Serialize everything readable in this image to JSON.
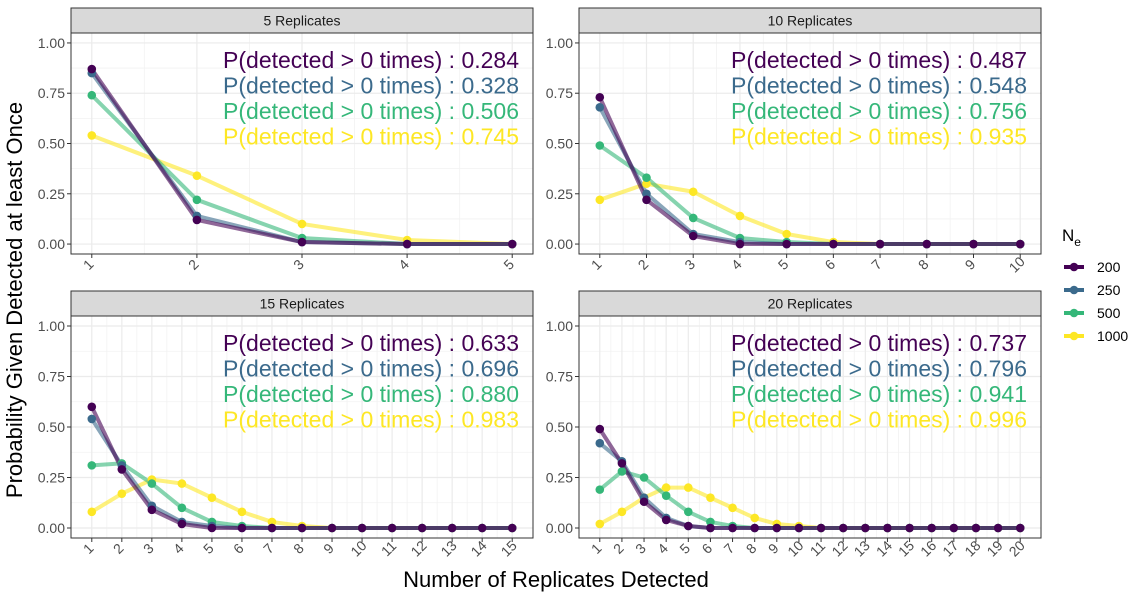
{
  "figure": {
    "ylabel": "Probability Given Detected at least Once",
    "xlabel": "Number of Replicates Detected",
    "legend_title_main": "N",
    "legend_title_sub": "e"
  },
  "colors": {
    "200": "#440154",
    "250": "#3B6A8C",
    "500": "#35B779",
    "1000": "#FDE725",
    "panel_strip": "#D9D9D9",
    "grid": "#EBEBEB"
  },
  "legend": [
    {
      "name": "200",
      "color": "#440154"
    },
    {
      "name": "250",
      "color": "#3B6A8C"
    },
    {
      "name": "500",
      "color": "#35B779"
    },
    {
      "name": "1000",
      "color": "#FDE725"
    }
  ],
  "chart_data": [
    {
      "type": "line",
      "title": "5  Replicates",
      "x": [
        1,
        2,
        3,
        4,
        5
      ],
      "ylim": [
        0,
        1
      ],
      "yticks": [
        "0.00",
        "0.25",
        "0.50",
        "0.75",
        "1.00"
      ],
      "grid": true,
      "series": [
        {
          "name": "200",
          "values": [
            0.87,
            0.12,
            0.01,
            0.0,
            0.0
          ]
        },
        {
          "name": "250",
          "values": [
            0.85,
            0.14,
            0.01,
            0.0,
            0.0
          ]
        },
        {
          "name": "500",
          "values": [
            0.74,
            0.22,
            0.03,
            0.0,
            0.0
          ]
        },
        {
          "name": "1000",
          "values": [
            0.54,
            0.34,
            0.1,
            0.02,
            0.0
          ]
        }
      ],
      "annotations": [
        {
          "series": "200",
          "text": "P(detected > 0 times) :  0.284"
        },
        {
          "series": "250",
          "text": "P(detected > 0 times) :  0.328"
        },
        {
          "series": "500",
          "text": "P(detected > 0 times) :  0.506"
        },
        {
          "series": "1000",
          "text": "P(detected > 0 times) :  0.745"
        }
      ]
    },
    {
      "type": "line",
      "title": "10  Replicates",
      "x": [
        1,
        2,
        3,
        4,
        5,
        6,
        7,
        8,
        9,
        10
      ],
      "ylim": [
        0,
        1
      ],
      "yticks": [
        "0.00",
        "0.25",
        "0.50",
        "0.75",
        "1.00"
      ],
      "grid": true,
      "series": [
        {
          "name": "200",
          "values": [
            0.73,
            0.22,
            0.04,
            0.0,
            0.0,
            0.0,
            0.0,
            0.0,
            0.0,
            0.0
          ]
        },
        {
          "name": "250",
          "values": [
            0.68,
            0.25,
            0.05,
            0.01,
            0.0,
            0.0,
            0.0,
            0.0,
            0.0,
            0.0
          ]
        },
        {
          "name": "500",
          "values": [
            0.49,
            0.33,
            0.13,
            0.03,
            0.01,
            0.0,
            0.0,
            0.0,
            0.0,
            0.0
          ]
        },
        {
          "name": "1000",
          "values": [
            0.22,
            0.3,
            0.26,
            0.14,
            0.05,
            0.01,
            0.0,
            0.0,
            0.0,
            0.0
          ]
        }
      ],
      "annotations": [
        {
          "series": "200",
          "text": "P(detected > 0 times) :  0.487"
        },
        {
          "series": "250",
          "text": "P(detected > 0 times) :  0.548"
        },
        {
          "series": "500",
          "text": "P(detected > 0 times) :  0.756"
        },
        {
          "series": "1000",
          "text": "P(detected > 0 times) :  0.935"
        }
      ]
    },
    {
      "type": "line",
      "title": "15  Replicates",
      "x": [
        1,
        2,
        3,
        4,
        5,
        6,
        7,
        8,
        9,
        10,
        11,
        12,
        13,
        14,
        15
      ],
      "ylim": [
        0,
        1
      ],
      "yticks": [
        "0.00",
        "0.25",
        "0.50",
        "0.75",
        "1.00"
      ],
      "grid": true,
      "series": [
        {
          "name": "200",
          "values": [
            0.6,
            0.29,
            0.09,
            0.02,
            0.0,
            0.0,
            0.0,
            0.0,
            0.0,
            0.0,
            0.0,
            0.0,
            0.0,
            0.0,
            0.0
          ]
        },
        {
          "name": "250",
          "values": [
            0.54,
            0.31,
            0.11,
            0.03,
            0.01,
            0.0,
            0.0,
            0.0,
            0.0,
            0.0,
            0.0,
            0.0,
            0.0,
            0.0,
            0.0
          ]
        },
        {
          "name": "500",
          "values": [
            0.31,
            0.32,
            0.22,
            0.1,
            0.03,
            0.01,
            0.0,
            0.0,
            0.0,
            0.0,
            0.0,
            0.0,
            0.0,
            0.0,
            0.0
          ]
        },
        {
          "name": "1000",
          "values": [
            0.08,
            0.17,
            0.24,
            0.22,
            0.15,
            0.08,
            0.03,
            0.01,
            0.0,
            0.0,
            0.0,
            0.0,
            0.0,
            0.0,
            0.0
          ]
        }
      ],
      "annotations": [
        {
          "series": "200",
          "text": "P(detected > 0 times) :  0.633"
        },
        {
          "series": "250",
          "text": "P(detected > 0 times) :  0.696"
        },
        {
          "series": "500",
          "text": "P(detected > 0 times) :  0.880"
        },
        {
          "series": "1000",
          "text": "P(detected > 0 times) :  0.983"
        }
      ]
    },
    {
      "type": "line",
      "title": "20  Replicates",
      "x": [
        1,
        2,
        3,
        4,
        5,
        6,
        7,
        8,
        9,
        10,
        11,
        12,
        13,
        14,
        15,
        16,
        17,
        18,
        19,
        20
      ],
      "ylim": [
        0,
        1
      ],
      "yticks": [
        "0.00",
        "0.25",
        "0.50",
        "0.75",
        "1.00"
      ],
      "grid": true,
      "series": [
        {
          "name": "200",
          "values": [
            0.49,
            0.32,
            0.13,
            0.04,
            0.01,
            0.0,
            0.0,
            0.0,
            0.0,
            0.0,
            0.0,
            0.0,
            0.0,
            0.0,
            0.0,
            0.0,
            0.0,
            0.0,
            0.0,
            0.0
          ]
        },
        {
          "name": "250",
          "values": [
            0.42,
            0.33,
            0.15,
            0.05,
            0.01,
            0.0,
            0.0,
            0.0,
            0.0,
            0.0,
            0.0,
            0.0,
            0.0,
            0.0,
            0.0,
            0.0,
            0.0,
            0.0,
            0.0,
            0.0
          ]
        },
        {
          "name": "500",
          "values": [
            0.19,
            0.28,
            0.25,
            0.16,
            0.08,
            0.03,
            0.01,
            0.0,
            0.0,
            0.0,
            0.0,
            0.0,
            0.0,
            0.0,
            0.0,
            0.0,
            0.0,
            0.0,
            0.0,
            0.0
          ]
        },
        {
          "name": "1000",
          "values": [
            0.02,
            0.08,
            0.15,
            0.2,
            0.2,
            0.15,
            0.1,
            0.05,
            0.02,
            0.01,
            0.0,
            0.0,
            0.0,
            0.0,
            0.0,
            0.0,
            0.0,
            0.0,
            0.0,
            0.0
          ]
        }
      ],
      "annotations": [
        {
          "series": "200",
          "text": "P(detected > 0 times) :  0.737"
        },
        {
          "series": "250",
          "text": "P(detected > 0 times) :  0.796"
        },
        {
          "series": "500",
          "text": "P(detected > 0 times) :  0.941"
        },
        {
          "series": "1000",
          "text": "P(detected > 0 times) :  0.996"
        }
      ]
    }
  ]
}
